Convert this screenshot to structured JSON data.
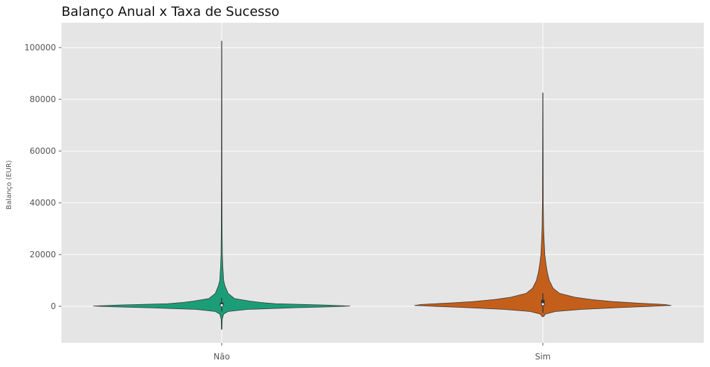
{
  "chart_data": {
    "type": "violin",
    "title": "Balanço Anual x Taxa de Sucesso",
    "xlabel": "",
    "ylabel": "Balanço (EUR)",
    "ylim": [
      -14000,
      108000
    ],
    "yticks": [
      0,
      20000,
      40000,
      60000,
      80000,
      100000
    ],
    "categories": [
      "Não",
      "Sim"
    ],
    "grid": true,
    "background": "#e5e5e5",
    "series": [
      {
        "category": "Não",
        "color": "#1b9e77",
        "min": -8900,
        "max": 102500,
        "q1": 50,
        "median": 400,
        "q3": 1400,
        "whisker_low": -2000,
        "whisker_high": 3200,
        "density": [
          [
            -8900,
            0.002
          ],
          [
            -5000,
            0.004
          ],
          [
            -3000,
            0.015
          ],
          [
            -2000,
            0.05
          ],
          [
            -1200,
            0.2
          ],
          [
            -600,
            0.55
          ],
          [
            -200,
            0.85
          ],
          [
            100,
            1.0
          ],
          [
            500,
            0.8
          ],
          [
            1000,
            0.42
          ],
          [
            1500,
            0.3
          ],
          [
            2000,
            0.22
          ],
          [
            3000,
            0.1
          ],
          [
            5000,
            0.05
          ],
          [
            8000,
            0.025
          ],
          [
            10000,
            0.015
          ],
          [
            15000,
            0.009
          ],
          [
            20000,
            0.005
          ],
          [
            30000,
            0.003
          ],
          [
            50000,
            0.002
          ],
          [
            80000,
            0.0015
          ],
          [
            102500,
            0.001
          ]
        ]
      },
      {
        "category": "Sim",
        "color": "#c45f1b",
        "min": -4000,
        "max": 82500,
        "q1": 200,
        "median": 800,
        "q3": 2500,
        "whisker_low": -2500,
        "whisker_high": 5000,
        "density": [
          [
            -4000,
            0.005
          ],
          [
            -3000,
            0.02
          ],
          [
            -2000,
            0.1
          ],
          [
            -1200,
            0.3
          ],
          [
            -500,
            0.6
          ],
          [
            0,
            0.85
          ],
          [
            300,
            1.0
          ],
          [
            700,
            0.95
          ],
          [
            1200,
            0.75
          ],
          [
            1800,
            0.55
          ],
          [
            2600,
            0.38
          ],
          [
            3500,
            0.25
          ],
          [
            5000,
            0.13
          ],
          [
            7000,
            0.08
          ],
          [
            10000,
            0.05
          ],
          [
            13000,
            0.035
          ],
          [
            16000,
            0.025
          ],
          [
            20000,
            0.015
          ],
          [
            25000,
            0.01
          ],
          [
            30000,
            0.006
          ],
          [
            40000,
            0.003
          ],
          [
            60000,
            0.002
          ],
          [
            82500,
            0.001
          ]
        ]
      }
    ]
  }
}
